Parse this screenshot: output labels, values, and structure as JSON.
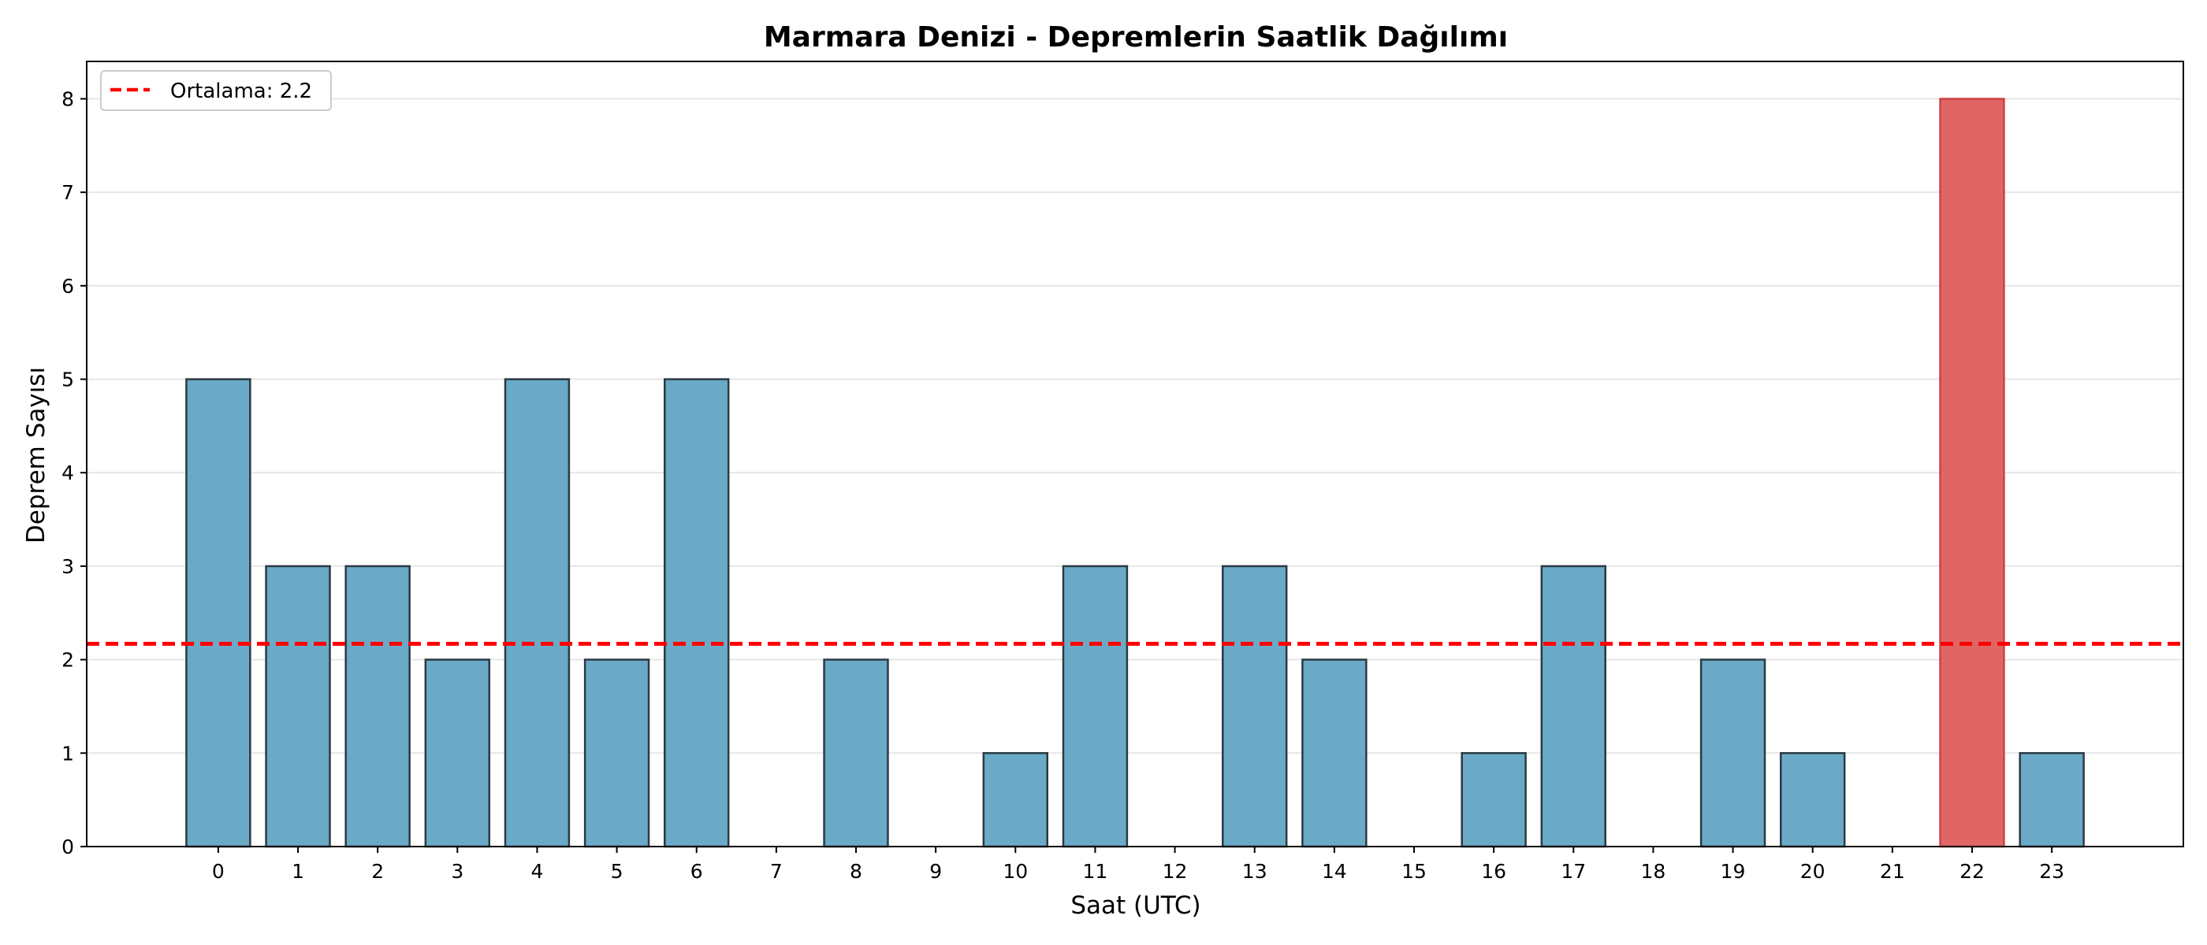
{
  "chart_data": {
    "type": "bar",
    "title": "Marmara Denizi - Depremlerin Saatlik Dağılımı",
    "xlabel": "Saat (UTC)",
    "ylabel": "Deprem Sayısı",
    "categories": [
      "0",
      "1",
      "2",
      "3",
      "4",
      "5",
      "6",
      "7",
      "8",
      "9",
      "10",
      "11",
      "12",
      "13",
      "14",
      "15",
      "16",
      "17",
      "18",
      "19",
      "20",
      "21",
      "22",
      "23"
    ],
    "values": [
      5,
      3,
      3,
      2,
      5,
      2,
      5,
      0,
      2,
      0,
      1,
      3,
      0,
      3,
      2,
      0,
      1,
      3,
      0,
      2,
      1,
      0,
      8,
      1
    ],
    "ylim": [
      0,
      8.4
    ],
    "yticks": [
      0,
      1,
      2,
      3,
      4,
      5,
      6,
      7,
      8
    ],
    "xlim": [
      -1.65,
      24.65
    ],
    "mean_line": {
      "value": 2.17,
      "label": "Ortalama: 2.2",
      "color": "#ff0000",
      "style": "dashed"
    },
    "bar_color": "#6aaac6",
    "highlight_color": "#e06666",
    "highlight_index": 22,
    "grid": "horizontal",
    "legend_position": "top-left"
  }
}
